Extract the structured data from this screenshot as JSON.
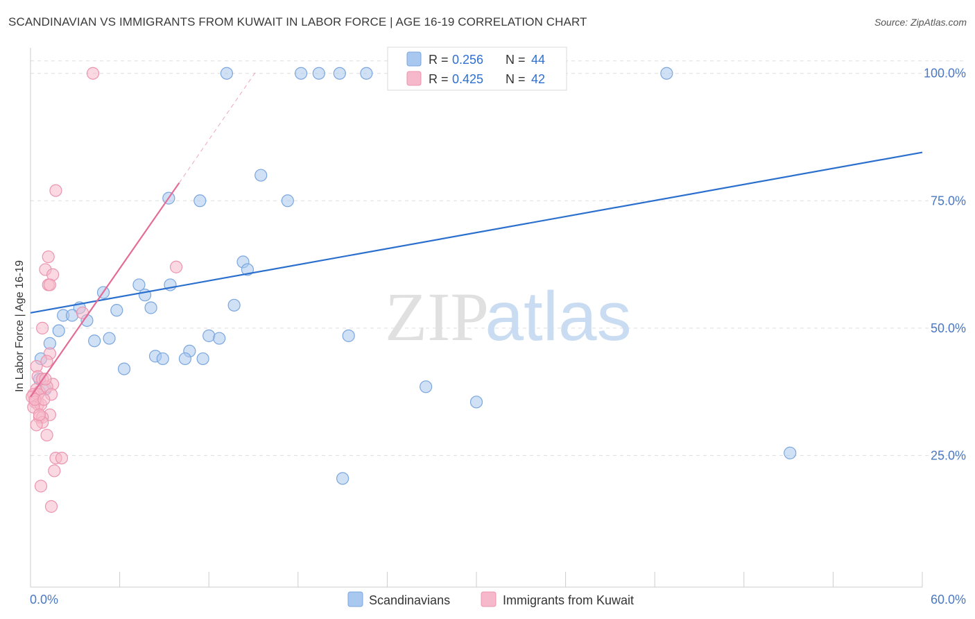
{
  "title": "SCANDINAVIAN VS IMMIGRANTS FROM KUWAIT IN LABOR FORCE | AGE 16-19 CORRELATION CHART",
  "source": "Source: ZipAtlas.com",
  "watermark": {
    "zip": "ZIP",
    "atlas": "atlas"
  },
  "colors": {
    "blue_fill": "#a9c8ef",
    "blue_stroke": "#7aa6de",
    "blue_line": "#2a6fce",
    "pink_fill": "#f6b9cb",
    "pink_stroke": "#ec94ae",
    "pink_line": "#e46b96",
    "grid": "#dddddd",
    "tick_text": "#4a78c2"
  },
  "legend": {
    "rows": [
      {
        "r_label": "R = ",
        "r_value": "0.256",
        "n_label": "N = ",
        "n_value": "44",
        "color": "blue"
      },
      {
        "r_label": "R = ",
        "r_value": "0.425",
        "n_label": "N = ",
        "n_value": "42",
        "color": "pink"
      }
    ]
  },
  "chart_data": {
    "type": "scatter",
    "title": "SCANDINAVIAN VS IMMIGRANTS FROM KUWAIT IN LABOR FORCE | AGE 16-19 CORRELATION CHART",
    "xlabel": "",
    "ylabel": "In Labor Force | Age 16-19",
    "xlim": [
      0,
      60
    ],
    "ylim": [
      0,
      105
    ],
    "x_tick_labels": [
      "0.0%",
      "60.0%"
    ],
    "y_ticks": [
      25,
      50,
      75,
      100
    ],
    "y_tick_labels": [
      "25.0%",
      "50.0%",
      "75.0%",
      "100.0%"
    ],
    "grid": true,
    "legend_position": "top-center",
    "series": [
      {
        "name": "Scandinavians",
        "color": "blue",
        "points": [
          [
            13.2,
            100
          ],
          [
            18.2,
            100
          ],
          [
            19.4,
            100
          ],
          [
            20.8,
            100
          ],
          [
            22.6,
            100
          ],
          [
            24.6,
            100
          ],
          [
            42.8,
            100
          ],
          [
            15.5,
            80.0
          ],
          [
            9.3,
            75.5
          ],
          [
            11.4,
            75.0
          ],
          [
            17.3,
            75.0
          ],
          [
            14.3,
            63.0
          ],
          [
            14.6,
            61.5
          ],
          [
            7.3,
            58.5
          ],
          [
            9.4,
            58.5
          ],
          [
            4.9,
            57.0
          ],
          [
            7.7,
            56.5
          ],
          [
            13.7,
            54.5
          ],
          [
            3.3,
            54.0
          ],
          [
            5.8,
            53.5
          ],
          [
            8.1,
            54.0
          ],
          [
            2.2,
            52.5
          ],
          [
            2.8,
            52.5
          ],
          [
            3.8,
            51.5
          ],
          [
            1.9,
            49.5
          ],
          [
            12.0,
            48.5
          ],
          [
            12.7,
            48.0
          ],
          [
            21.4,
            48.5
          ],
          [
            5.3,
            48.0
          ],
          [
            4.3,
            47.5
          ],
          [
            1.3,
            47.0
          ],
          [
            10.7,
            45.5
          ],
          [
            8.4,
            44.5
          ],
          [
            10.4,
            44.0
          ],
          [
            11.6,
            44.0
          ],
          [
            8.9,
            44.0
          ],
          [
            0.7,
            44.0
          ],
          [
            6.3,
            42.0
          ],
          [
            0.6,
            40.0
          ],
          [
            1.0,
            38.0
          ],
          [
            26.6,
            38.5
          ],
          [
            30.0,
            35.5
          ],
          [
            51.1,
            25.5
          ],
          [
            21.0,
            20.5
          ]
        ]
      },
      {
        "name": "Immigrants from Kuwait",
        "color": "pink",
        "points": [
          [
            4.2,
            100
          ],
          [
            1.7,
            77.0
          ],
          [
            9.8,
            62.0
          ],
          [
            1.2,
            64.0
          ],
          [
            1.0,
            61.5
          ],
          [
            1.5,
            60.5
          ],
          [
            1.2,
            58.5
          ],
          [
            1.3,
            58.5
          ],
          [
            3.5,
            53.0
          ],
          [
            0.8,
            50.0
          ],
          [
            1.3,
            45.0
          ],
          [
            1.1,
            43.5
          ],
          [
            0.4,
            42.5
          ],
          [
            0.5,
            40.5
          ],
          [
            0.8,
            40.0
          ],
          [
            1.5,
            39.0
          ],
          [
            0.4,
            38.0
          ],
          [
            0.6,
            37.5
          ],
          [
            1.1,
            38.5
          ],
          [
            0.2,
            37.0
          ],
          [
            0.5,
            37.0
          ],
          [
            1.4,
            37.0
          ],
          [
            0.1,
            36.5
          ],
          [
            0.3,
            35.5
          ],
          [
            0.5,
            35.0
          ],
          [
            0.7,
            35.0
          ],
          [
            0.2,
            34.5
          ],
          [
            1.3,
            33.0
          ],
          [
            0.6,
            32.5
          ],
          [
            0.8,
            32.5
          ],
          [
            0.8,
            31.5
          ],
          [
            0.4,
            31.0
          ],
          [
            1.1,
            29.0
          ],
          [
            1.7,
            24.5
          ],
          [
            2.1,
            24.5
          ],
          [
            1.6,
            22.0
          ],
          [
            0.7,
            19.0
          ],
          [
            1.4,
            15.0
          ],
          [
            0.3,
            36.0
          ],
          [
            0.9,
            36.0
          ],
          [
            0.6,
            33.0
          ],
          [
            1.0,
            40.0
          ]
        ]
      }
    ],
    "trend_lines": [
      {
        "series": "Scandinavians",
        "x": [
          0,
          60
        ],
        "y": [
          53.0,
          84.5
        ],
        "style": "solid"
      },
      {
        "series": "Immigrants from Kuwait",
        "x": [
          0,
          10.0
        ],
        "y": [
          36.5,
          78.5
        ],
        "style": "solid"
      },
      {
        "series": "Immigrants from Kuwait",
        "x": [
          10.0,
          15.2
        ],
        "y": [
          78.5,
          100.5
        ],
        "style": "dashed"
      }
    ]
  },
  "bottom_legend": [
    {
      "label": "Scandinavians",
      "color": "blue"
    },
    {
      "label": "Immigrants from Kuwait",
      "color": "pink"
    }
  ]
}
